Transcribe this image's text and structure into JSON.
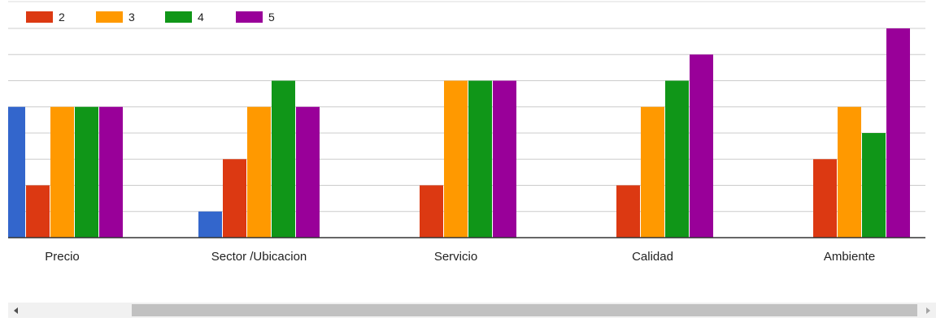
{
  "chart_data": {
    "type": "bar",
    "categories": [
      "Precio",
      "Sector /Ubicacion",
      "Servicio",
      "Calidad",
      "Ambiente"
    ],
    "series": [
      {
        "name": "",
        "color": "#3366cc",
        "values": [
          5,
          1,
          0,
          0,
          0
        ]
      },
      {
        "name": "2",
        "color": "#dc3912",
        "values": [
          2,
          3,
          2,
          2,
          3
        ]
      },
      {
        "name": "3",
        "color": "#ff9900",
        "values": [
          5,
          5,
          6,
          5,
          5
        ]
      },
      {
        "name": "4",
        "color": "#109618",
        "values": [
          5,
          6,
          6,
          6,
          4
        ]
      },
      {
        "name": "5",
        "color": "#990099",
        "values": [
          5,
          5,
          6,
          7,
          8
        ]
      }
    ],
    "ylim": [
      0,
      8
    ],
    "grid": true,
    "legend_position": "top-left"
  },
  "scrollbar": {
    "left_icon": "arrow-left-icon",
    "right_icon": "arrow-right-icon"
  }
}
